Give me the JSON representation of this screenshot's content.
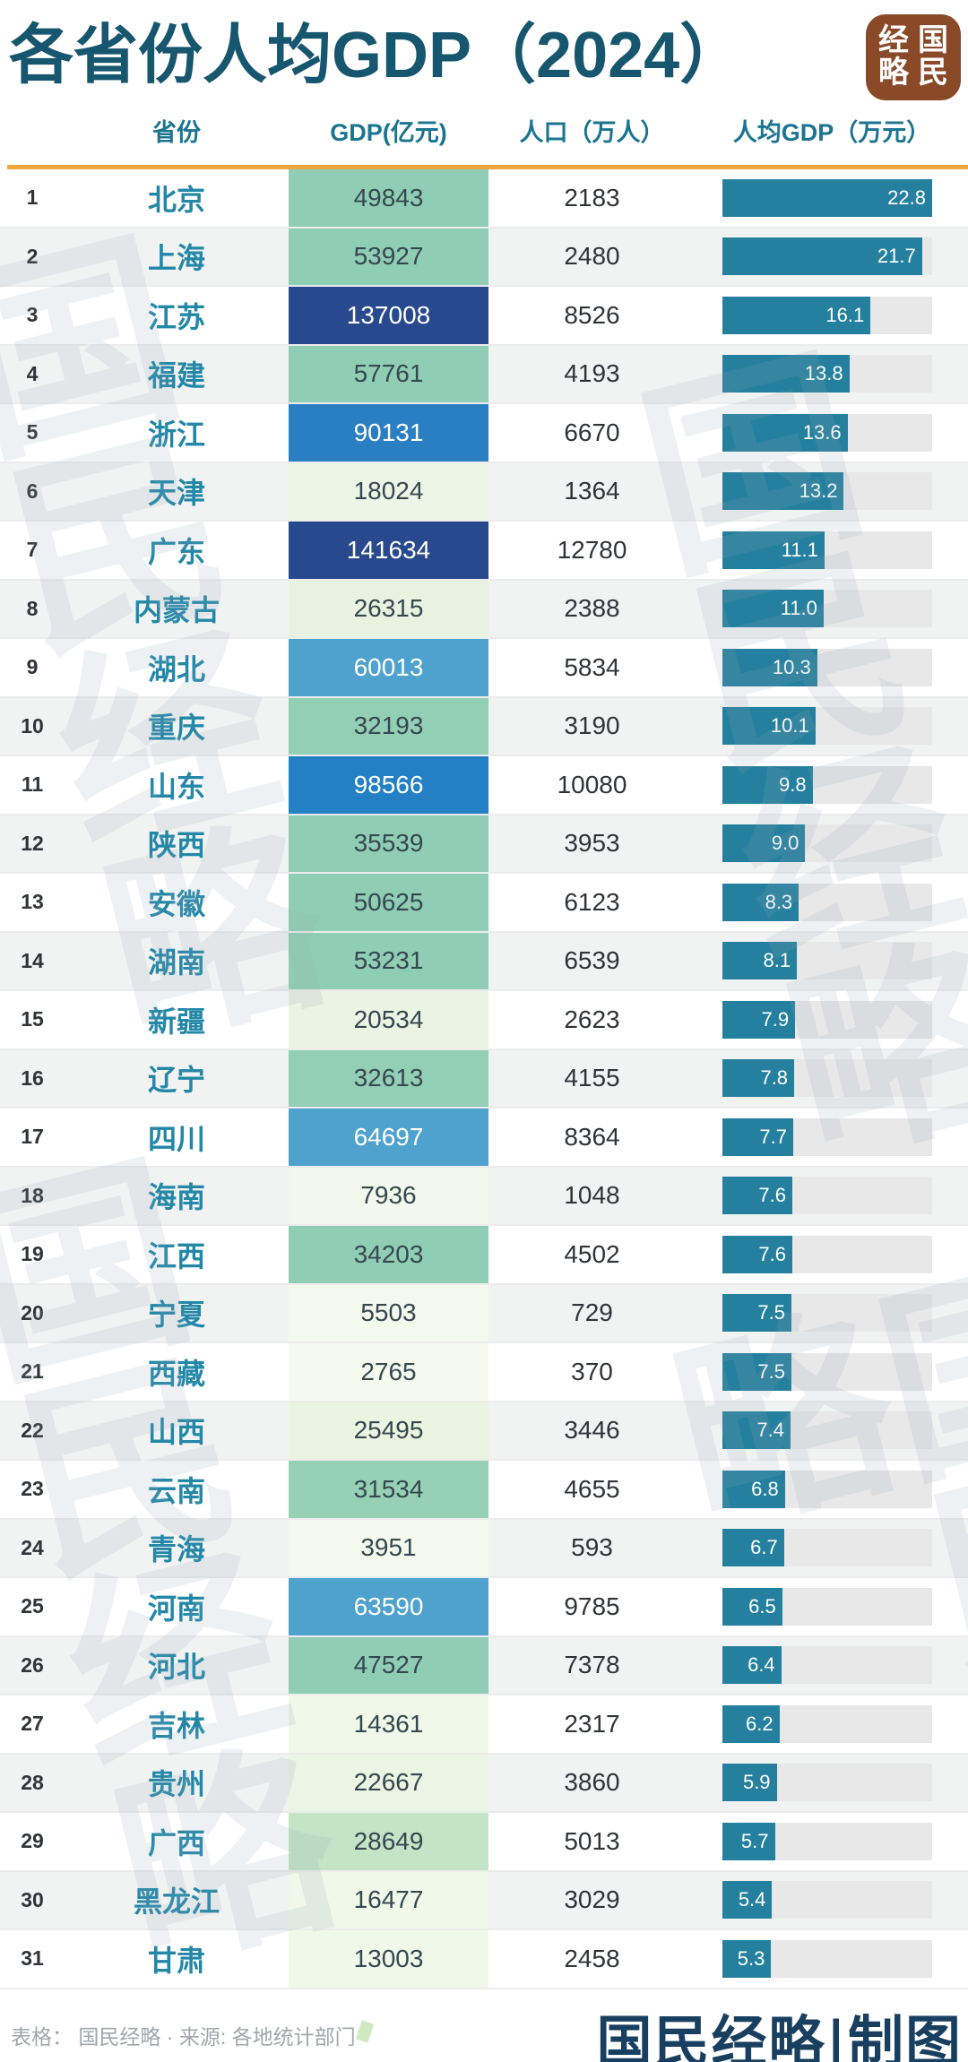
{
  "title": "各省份人均GDP（2024）",
  "badge": {
    "columns": [
      [
        "经",
        "略"
      ],
      [
        "国",
        "民"
      ]
    ]
  },
  "watermark_text": "国民经略",
  "footer": {
    "source_note": "表格： 国民经略 · 来源: 各地统计部门 ·",
    "credit": "国民经略|制图"
  },
  "colors": {
    "title_text": "#16566f",
    "header_text": "#1b7490",
    "province_text": "#2387a8",
    "body_text": "#303337",
    "accent_orange": "#efa63e",
    "bar_fill": "#24809e",
    "bar_track": "#e8e8e8",
    "row_alt_bg": "#f1f2f2",
    "badge_bg": "#8a4a28",
    "credit_text": "#183f5f",
    "note_text": "#a2a7aa",
    "watermark": "rgba(150,168,178,0.16)"
  },
  "chart_data": {
    "type": "table",
    "title": "各省份人均GDP（2024）",
    "columns": [
      "省份",
      "GDP(亿元)",
      "人口（万人）",
      "人均GDP（万元）"
    ],
    "bar_max": 22.8,
    "rows": [
      {
        "rank": 1,
        "province": "北京",
        "gdp": "49843",
        "population": "2183",
        "per_capita": 22.8,
        "label": "22.8",
        "cell_bg": "#8fceb4",
        "cell_fg": "#37474f"
      },
      {
        "rank": 2,
        "province": "上海",
        "gdp": "53927",
        "population": "2480",
        "per_capita": 21.7,
        "label": "21.7",
        "cell_bg": "#8fceb4",
        "cell_fg": "#37474f"
      },
      {
        "rank": 3,
        "province": "江苏",
        "gdp": "137008",
        "population": "8526",
        "per_capita": 16.1,
        "label": "16.1",
        "cell_bg": "#28498e",
        "cell_fg": "#ffffff"
      },
      {
        "rank": 4,
        "province": "福建",
        "gdp": "57761",
        "population": "4193",
        "per_capita": 13.8,
        "label": "13.8",
        "cell_bg": "#8fceb4",
        "cell_fg": "#37474f"
      },
      {
        "rank": 5,
        "province": "浙江",
        "gdp": "90131",
        "population": "6670",
        "per_capita": 13.6,
        "label": "13.6",
        "cell_bg": "#2a7fc2",
        "cell_fg": "#ffffff"
      },
      {
        "rank": 6,
        "province": "天津",
        "gdp": "18024",
        "population": "1364",
        "per_capita": 13.2,
        "label": "13.2",
        "cell_bg": "#ecf6e6",
        "cell_fg": "#37474f"
      },
      {
        "rank": 7,
        "province": "广东",
        "gdp": "141634",
        "population": "12780",
        "per_capita": 11.1,
        "label": "11.1",
        "cell_bg": "#28498e",
        "cell_fg": "#ffffff"
      },
      {
        "rank": 8,
        "province": "内蒙古",
        "gdp": "26315",
        "population": "2388",
        "per_capita": 11.0,
        "label": "11.0",
        "cell_bg": "#e7f3e0",
        "cell_fg": "#37474f"
      },
      {
        "rank": 9,
        "province": "湖北",
        "gdp": "60013",
        "population": "5834",
        "per_capita": 10.3,
        "label": "10.3",
        "cell_bg": "#4ea2cd",
        "cell_fg": "#ffffff"
      },
      {
        "rank": 10,
        "province": "重庆",
        "gdp": "32193",
        "population": "3190",
        "per_capita": 10.1,
        "label": "10.1",
        "cell_bg": "#92cfb5",
        "cell_fg": "#37474f"
      },
      {
        "rank": 11,
        "province": "山东",
        "gdp": "98566",
        "population": "10080",
        "per_capita": 9.8,
        "label": "9.8",
        "cell_bg": "#2380c4",
        "cell_fg": "#ffffff"
      },
      {
        "rank": 12,
        "province": "陕西",
        "gdp": "35539",
        "population": "3953",
        "per_capita": 9.0,
        "label": "9.0",
        "cell_bg": "#8fceb4",
        "cell_fg": "#37474f"
      },
      {
        "rank": 13,
        "province": "安徽",
        "gdp": "50625",
        "population": "6123",
        "per_capita": 8.3,
        "label": "8.3",
        "cell_bg": "#8fceb4",
        "cell_fg": "#37474f"
      },
      {
        "rank": 14,
        "province": "湖南",
        "gdp": "53231",
        "population": "6539",
        "per_capita": 8.1,
        "label": "8.1",
        "cell_bg": "#8fceb4",
        "cell_fg": "#37474f"
      },
      {
        "rank": 15,
        "province": "新疆",
        "gdp": "20534",
        "population": "2623",
        "per_capita": 7.9,
        "label": "7.9",
        "cell_bg": "#e9f4e2",
        "cell_fg": "#37474f"
      },
      {
        "rank": 16,
        "province": "辽宁",
        "gdp": "32613",
        "population": "4155",
        "per_capita": 7.8,
        "label": "7.8",
        "cell_bg": "#92cfb5",
        "cell_fg": "#37474f"
      },
      {
        "rank": 17,
        "province": "四川",
        "gdp": "64697",
        "population": "8364",
        "per_capita": 7.7,
        "label": "7.7",
        "cell_bg": "#4ea2cd",
        "cell_fg": "#ffffff"
      },
      {
        "rank": 18,
        "province": "海南",
        "gdp": "7936",
        "population": "1048",
        "per_capita": 7.6,
        "label": "7.6",
        "cell_bg": "#f2f9ec",
        "cell_fg": "#37474f"
      },
      {
        "rank": 19,
        "province": "江西",
        "gdp": "34203",
        "population": "4502",
        "per_capita": 7.6,
        "label": "7.6",
        "cell_bg": "#8fceb4",
        "cell_fg": "#37474f"
      },
      {
        "rank": 20,
        "province": "宁夏",
        "gdp": "5503",
        "population": "729",
        "per_capita": 7.5,
        "label": "7.5",
        "cell_bg": "#f3f9ed",
        "cell_fg": "#37474f"
      },
      {
        "rank": 21,
        "province": "西藏",
        "gdp": "2765",
        "population": "370",
        "per_capita": 7.5,
        "label": "7.5",
        "cell_bg": "#f4faee",
        "cell_fg": "#37474f"
      },
      {
        "rank": 22,
        "province": "山西",
        "gdp": "25495",
        "population": "3446",
        "per_capita": 7.4,
        "label": "7.4",
        "cell_bg": "#e9f4e1",
        "cell_fg": "#37474f"
      },
      {
        "rank": 23,
        "province": "云南",
        "gdp": "31534",
        "population": "4655",
        "per_capita": 6.8,
        "label": "6.8",
        "cell_bg": "#96d1b6",
        "cell_fg": "#37474f"
      },
      {
        "rank": 24,
        "province": "青海",
        "gdp": "3951",
        "population": "593",
        "per_capita": 6.7,
        "label": "6.7",
        "cell_bg": "#f3f9ed",
        "cell_fg": "#37474f"
      },
      {
        "rank": 25,
        "province": "河南",
        "gdp": "63590",
        "population": "9785",
        "per_capita": 6.5,
        "label": "6.5",
        "cell_bg": "#4ea2cd",
        "cell_fg": "#ffffff"
      },
      {
        "rank": 26,
        "province": "河北",
        "gdp": "47527",
        "population": "7378",
        "per_capita": 6.4,
        "label": "6.4",
        "cell_bg": "#8fceb4",
        "cell_fg": "#37474f"
      },
      {
        "rank": 27,
        "province": "吉林",
        "gdp": "14361",
        "population": "2317",
        "per_capita": 6.2,
        "label": "6.2",
        "cell_bg": "#eff8e9",
        "cell_fg": "#37474f"
      },
      {
        "rank": 28,
        "province": "贵州",
        "gdp": "22667",
        "population": "3860",
        "per_capita": 5.9,
        "label": "5.9",
        "cell_bg": "#eaf5e3",
        "cell_fg": "#37474f"
      },
      {
        "rank": 29,
        "province": "广西",
        "gdp": "28649",
        "population": "5013",
        "per_capita": 5.7,
        "label": "5.7",
        "cell_bg": "#c3e4c6",
        "cell_fg": "#37474f"
      },
      {
        "rank": 30,
        "province": "黑龙江",
        "gdp": "16477",
        "population": "3029",
        "per_capita": 5.4,
        "label": "5.4",
        "cell_bg": "#eff8e9",
        "cell_fg": "#37474f"
      },
      {
        "rank": 31,
        "province": "甘肃",
        "gdp": "13003",
        "population": "2458",
        "per_capita": 5.3,
        "label": "5.3",
        "cell_bg": "#f0f8ea",
        "cell_fg": "#37474f"
      }
    ]
  }
}
